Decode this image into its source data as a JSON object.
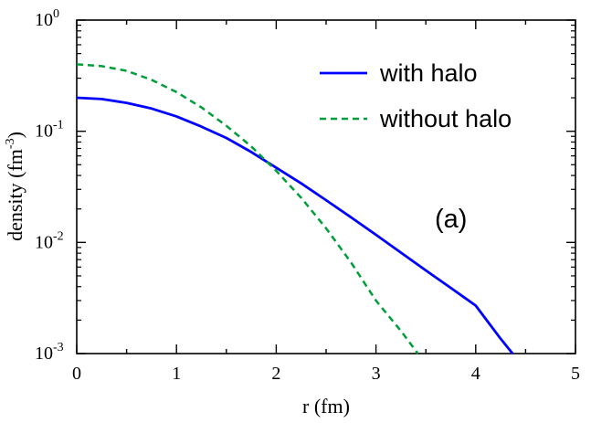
{
  "chart_data": {
    "type": "line",
    "title": "",
    "xlabel": "r  (fm)",
    "ylabel": {
      "base": "density  (fm",
      "sup": "-3",
      "close": ")"
    },
    "xlim": [
      0,
      5
    ],
    "ylim": [
      0.001,
      1
    ],
    "yscale": "log",
    "grid": false,
    "legend_position": "top-right",
    "annotation": "(a)",
    "x_ticks": [
      {
        "value": 0,
        "label": "0"
      },
      {
        "value": 1,
        "label": "1"
      },
      {
        "value": 2,
        "label": "2"
      },
      {
        "value": 3,
        "label": "3"
      },
      {
        "value": 4,
        "label": "4"
      },
      {
        "value": 5,
        "label": "5"
      }
    ],
    "y_ticks": [
      {
        "value": 0.001,
        "base": "10",
        "exp": "-3"
      },
      {
        "value": 0.01,
        "base": "10",
        "exp": "-2"
      },
      {
        "value": 0.1,
        "base": "10",
        "exp": "-1"
      },
      {
        "value": 1,
        "base": "10",
        "exp": "0"
      }
    ],
    "series": [
      {
        "name": "with halo",
        "color": "#0000ff",
        "dash": "solid",
        "x": [
          0,
          0.25,
          0.5,
          0.75,
          1.0,
          1.25,
          1.5,
          1.75,
          2.0,
          2.25,
          2.5,
          2.75,
          3.0,
          3.25,
          3.5,
          3.75,
          4.0,
          4.25,
          4.37
        ],
        "y": [
          0.2,
          0.195,
          0.18,
          0.16,
          0.136,
          0.11,
          0.087,
          0.065,
          0.047,
          0.034,
          0.024,
          0.0168,
          0.0117,
          0.0081,
          0.0056,
          0.0039,
          0.0027,
          0.00136,
          0.001
        ]
      },
      {
        "name": "without halo",
        "color": "#009e3a",
        "dash": "dashed",
        "x": [
          0,
          0.25,
          0.5,
          0.75,
          1.0,
          1.25,
          1.5,
          1.75,
          2.0,
          2.25,
          2.5,
          2.75,
          3.0,
          3.25,
          3.42
        ],
        "y": [
          0.4,
          0.385,
          0.35,
          0.29,
          0.225,
          0.164,
          0.112,
          0.073,
          0.044,
          0.0252,
          0.0134,
          0.0066,
          0.003,
          0.0016,
          0.001
        ]
      }
    ]
  }
}
